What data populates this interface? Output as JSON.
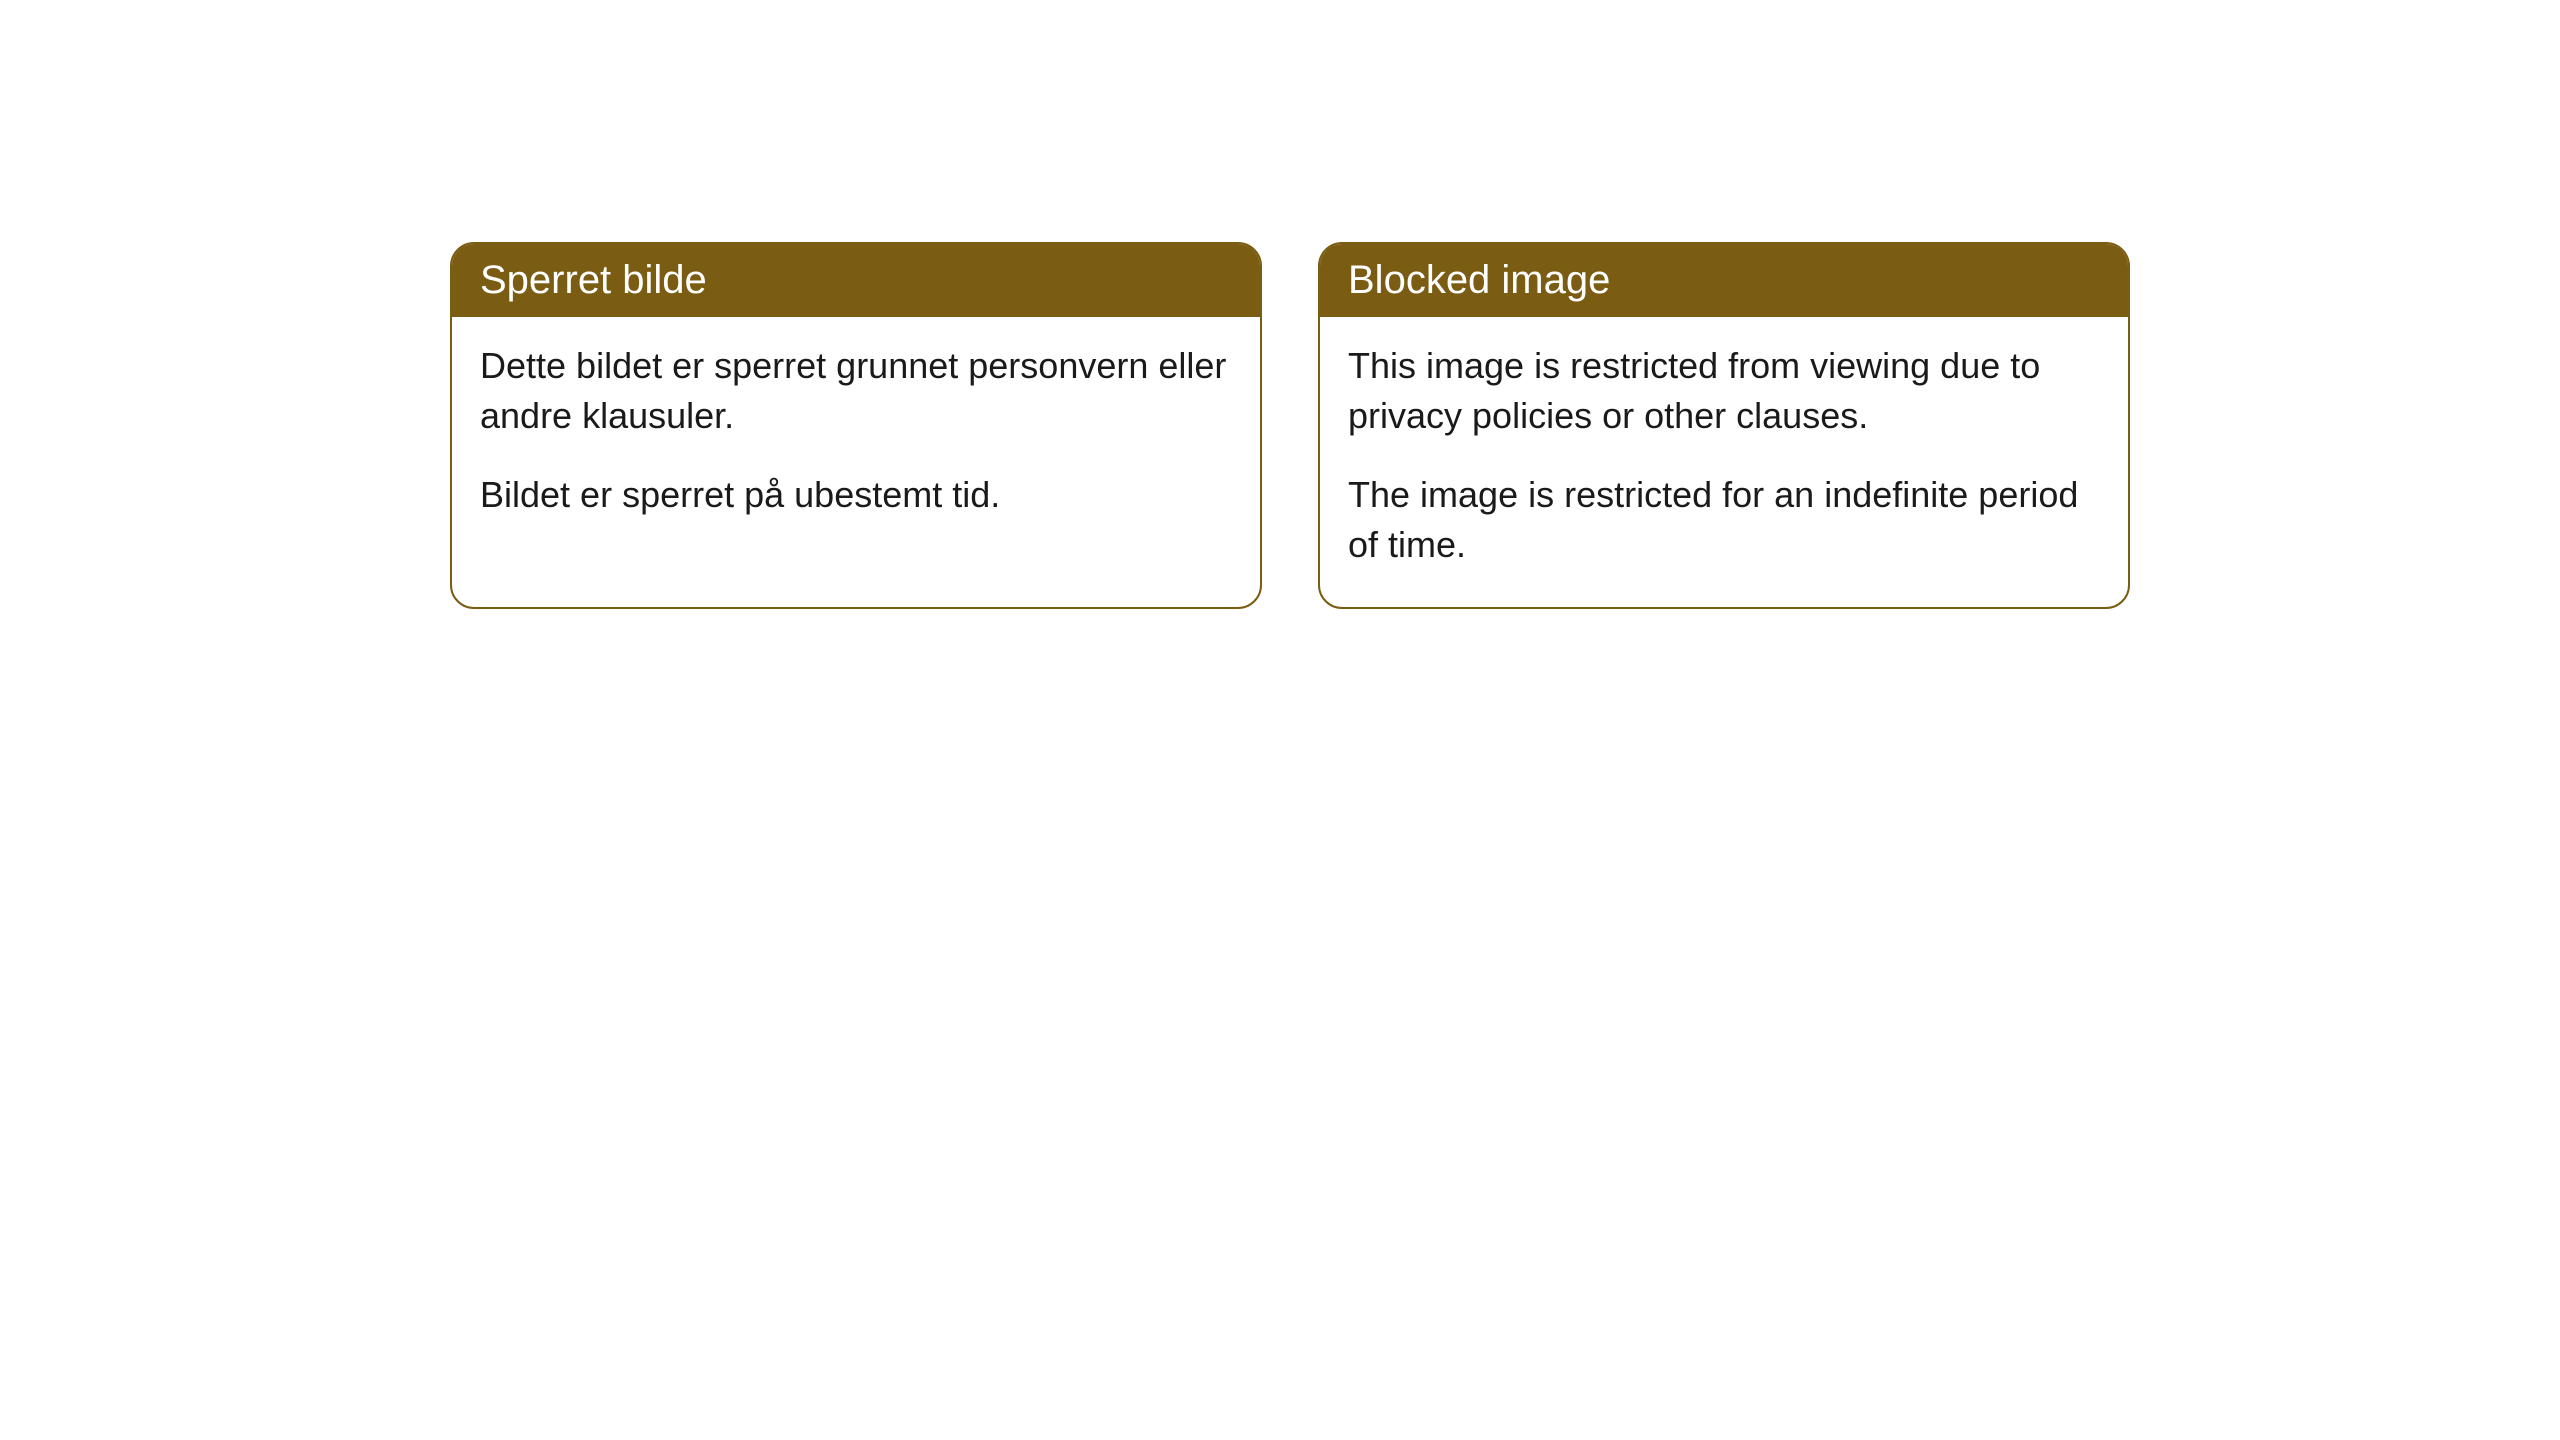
{
  "cards": {
    "left": {
      "title": "Sperret bilde",
      "paragraph1": "Dette bildet er sperret grunnet personvern eller andre klausuler.",
      "paragraph2": "Bildet er sperret på ubestemt tid."
    },
    "right": {
      "title": "Blocked image",
      "paragraph1": "This image is restricted from viewing due to privacy policies or other clauses.",
      "paragraph2": "The image is restricted for an indefinite period of time."
    }
  },
  "style": {
    "header_bg_color": "#7a5c12",
    "header_text_color": "#ffffff",
    "border_color": "#7a5c12",
    "body_text_color": "#1a1a1a",
    "background_color": "#ffffff",
    "border_radius": "24px",
    "header_fontsize": 40,
    "body_fontsize": 36
  }
}
